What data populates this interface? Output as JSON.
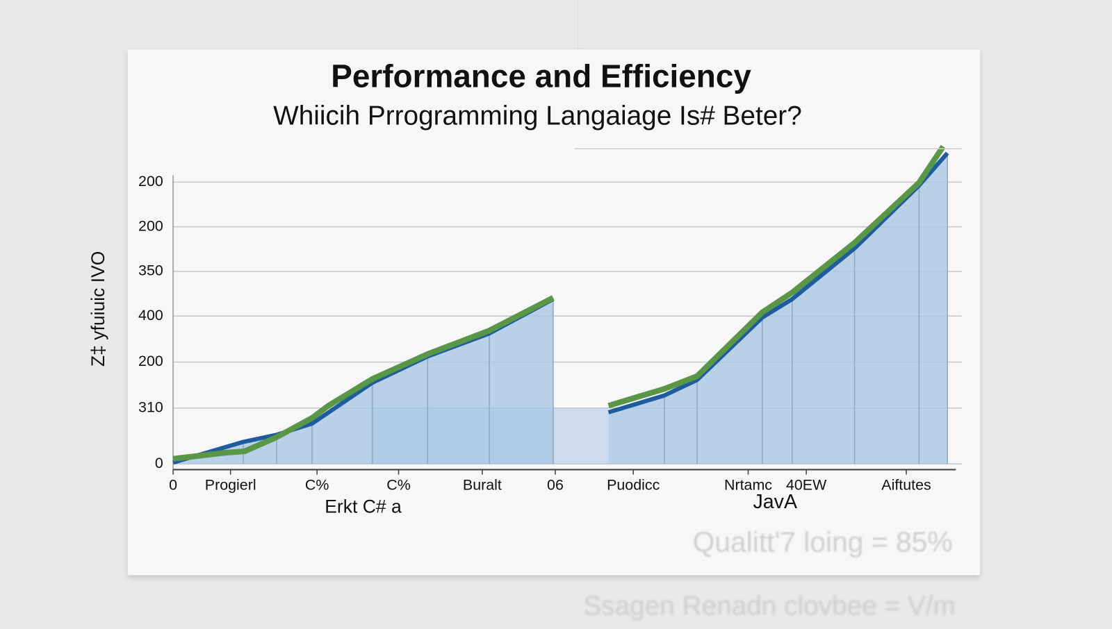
{
  "chart_data": {
    "type": "line",
    "title": "Performance and Efficiency",
    "subtitle": "Whiicih Prrogramming Langaiage Is# Beter?",
    "y_label": "Z‡ yfuiuic IVO",
    "x_labels": [
      "Erkt C# a",
      "JavA"
    ],
    "annotations": [
      "Qualitt'7 loing = 85%",
      "Ssagen Renadn clovbee = V/m"
    ],
    "xlim": [
      0,
      11.04
    ],
    "ylim": [
      0,
      6.9
    ],
    "yticks": [
      0,
      {
        "value": 1.19,
        "label": "310"
      },
      {
        "value": 2.17,
        "label": "200"
      },
      {
        "value": 3.15,
        "label": "400"
      },
      {
        "value": 4.1,
        "label": "350"
      },
      {
        "value": 5.05,
        "label": "200"
      },
      {
        "value": 6,
        "label": "200"
      }
    ],
    "xticks": [
      0,
      {
        "value": 0.81,
        "label": "Progierl"
      },
      {
        "value": 2.03,
        "label": "C%"
      },
      {
        "value": 3.18,
        "label": "C%"
      },
      {
        "value": 4.36,
        "label": "Buralt"
      },
      {
        "value": 5.39,
        "label": "06"
      },
      {
        "value": 6.49,
        "label": "Puodicc"
      },
      {
        "value": 8.11,
        "label": "Nrtamc"
      },
      {
        "value": 8.93,
        "label": "40EW"
      },
      {
        "value": 10.34,
        "label": "Aiftutes"
      }
    ],
    "grid": true,
    "series": [
      {
        "color": "#5a9648",
        "x": [
          0,
          0.74,
          1.01,
          1.46,
          1.96,
          2.19,
          2.81,
          3.59,
          4.46,
          5.36,
          null,
          6.14,
          6.93,
          7.39,
          8.31,
          8.73,
          9.61,
          10.52,
          10.86
        ],
        "values": [
          0.11,
          0.24,
          0.27,
          0.57,
          0.98,
          1.24,
          1.81,
          2.34,
          2.84,
          3.54,
          null,
          1.24,
          1.6,
          1.87,
          3.23,
          3.65,
          4.71,
          5.99,
          6.76
        ]
      },
      {
        "color": "#1f5c9e",
        "area_color": "#a9c7e3",
        "x": [
          0,
          0.99,
          1.46,
          1.96,
          2.81,
          3.59,
          4.46,
          5.36,
          null,
          6.14,
          6.93,
          7.39,
          8.31,
          8.73,
          9.61,
          10.52,
          10.92
        ],
        "values": [
          0.03,
          0.47,
          0.62,
          0.86,
          1.73,
          2.29,
          2.78,
          3.51,
          null,
          1.1,
          1.46,
          1.79,
          3.12,
          3.51,
          4.59,
          5.93,
          6.62
        ]
      }
    ]
  }
}
